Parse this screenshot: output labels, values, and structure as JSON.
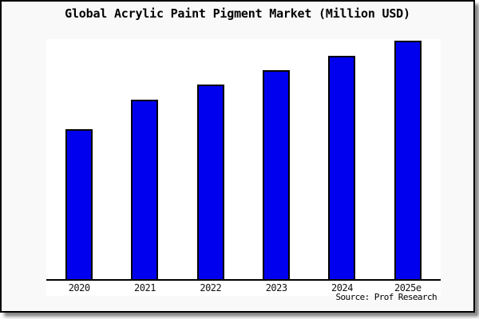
{
  "window": {
    "title": "Global Acrylic Paint Pigment Market (Million USD)"
  },
  "chart_data": {
    "type": "bar",
    "title": "Global Acrylic Paint Pigment Market (Million USD)",
    "categories": [
      "2020",
      "2021",
      "2022",
      "2023",
      "2024",
      "2025e"
    ],
    "values": [
      100,
      119.5,
      129.8,
      139.3,
      148.8,
      158.8
    ],
    "values_note": "y-axis is unlabeled; values are a relative index (2020 = 100) estimated from bar heights",
    "xlabel": "",
    "ylabel": "",
    "ylim": [
      0,
      160
    ],
    "grid": false,
    "legend": null,
    "source": "Source: Prof Research",
    "bar_color": "#0000ee",
    "bar_border_color": "#000000"
  },
  "colors": {
    "figure_bg": "#f9f9f9",
    "plot_bg": "#ffffff",
    "border": "#000000",
    "shadow_gray": "#999999",
    "text": "#000000"
  }
}
